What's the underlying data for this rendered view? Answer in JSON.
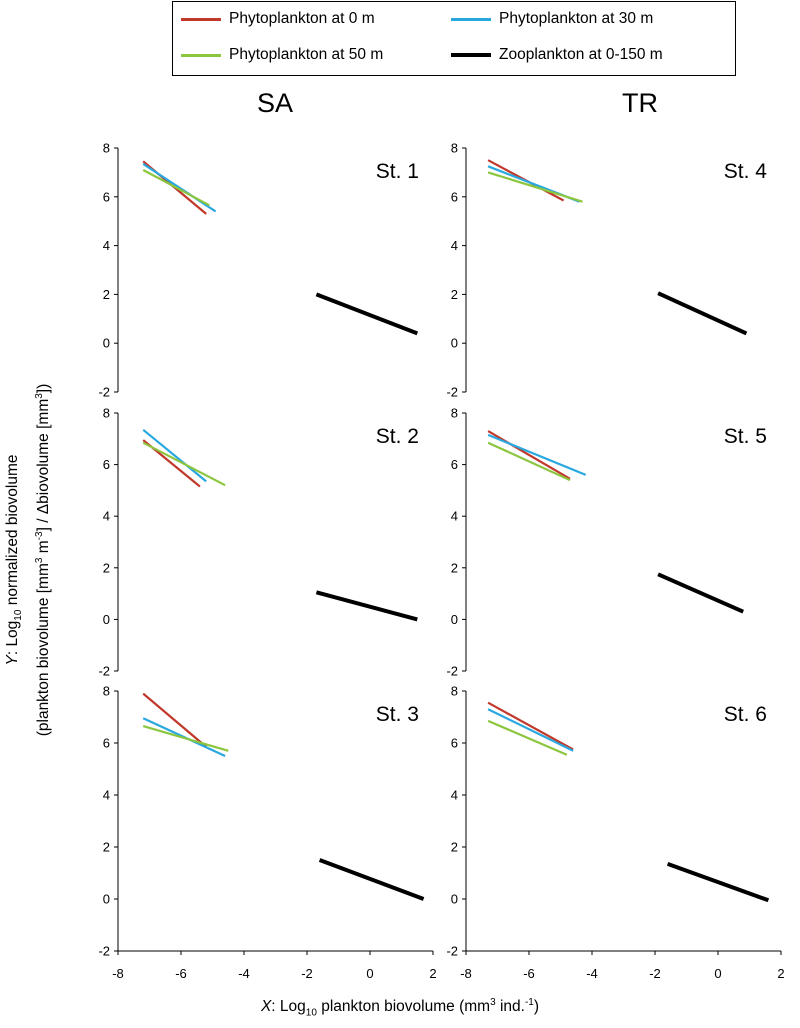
{
  "legend": {
    "items": [
      {
        "label": "Phytoplankton at 0 m",
        "color": "#c0392b"
      },
      {
        "label": "Phytoplankton at 30 m",
        "color": "#29a8e0"
      },
      {
        "label": "Phytoplankton at 50 m",
        "color": "#8cc63f"
      },
      {
        "label": "Zooplankton at 0-150 m",
        "color": "#000000"
      }
    ]
  },
  "columns": [
    "SA",
    "TR"
  ],
  "ylabel": {
    "line1_prefix": "Y",
    "line1_text": ": Log",
    "line1_sub": "10",
    "line1_tail": " normalized biovolume",
    "line2_a": "(plankton biovolume [mm",
    "line2_sup1": "3",
    "line2_b": " m",
    "line2_sup2": "-3",
    "line2_c": "] / Δbiovolume [mm",
    "line2_sup3": "3",
    "line2_d": "])"
  },
  "xlabel": {
    "prefix": "X",
    "text": ": Log",
    "sub": "10",
    "tail": " plankton biovolume (mm",
    "sup1": "3",
    "tail2": " ind.",
    "sup2": "-1",
    "tail3": ")"
  },
  "chart_data": [
    {
      "type": "line",
      "panel": "St. 1",
      "column": "SA",
      "xlim": [
        -8,
        2
      ],
      "ylim": [
        -2,
        8
      ],
      "xticks": [
        -8,
        -6,
        -4,
        -2,
        0,
        2
      ],
      "yticks": [
        -2,
        0,
        2,
        4,
        6,
        8
      ],
      "series": [
        {
          "name": "Phytoplankton at 0 m",
          "x": [
            -7.2,
            -5.2
          ],
          "y": [
            7.45,
            5.3
          ]
        },
        {
          "name": "Phytoplankton at 30 m",
          "x": [
            -7.2,
            -4.9
          ],
          "y": [
            7.35,
            5.4
          ]
        },
        {
          "name": "Phytoplankton at 50 m",
          "x": [
            -7.2,
            -5.1
          ],
          "y": [
            7.1,
            5.65
          ]
        },
        {
          "name": "Zooplankton at 0-150 m",
          "x": [
            -1.7,
            1.5
          ],
          "y": [
            2.0,
            0.4
          ]
        }
      ]
    },
    {
      "type": "line",
      "panel": "St. 4",
      "column": "TR",
      "xlim": [
        -8,
        2
      ],
      "ylim": [
        -2,
        8
      ],
      "xticks": [
        -8,
        -6,
        -4,
        -2,
        0,
        2
      ],
      "yticks": [
        -2,
        0,
        2,
        4,
        6,
        8
      ],
      "series": [
        {
          "name": "Phytoplankton at 0 m",
          "x": [
            -7.3,
            -4.9
          ],
          "y": [
            7.5,
            5.85
          ]
        },
        {
          "name": "Phytoplankton at 30 m",
          "x": [
            -7.3,
            -4.4
          ],
          "y": [
            7.25,
            5.8
          ]
        },
        {
          "name": "Phytoplankton at 50 m",
          "x": [
            -7.3,
            -4.3
          ],
          "y": [
            7.0,
            5.8
          ]
        },
        {
          "name": "Zooplankton at 0-150 m",
          "x": [
            -1.9,
            0.9
          ],
          "y": [
            2.05,
            0.4
          ]
        }
      ]
    },
    {
      "type": "line",
      "panel": "St. 2",
      "column": "SA",
      "xlim": [
        -8,
        2
      ],
      "ylim": [
        -2,
        8
      ],
      "xticks": [
        -8,
        -6,
        -4,
        -2,
        0,
        2
      ],
      "yticks": [
        -2,
        0,
        2,
        4,
        6,
        8
      ],
      "series": [
        {
          "name": "Phytoplankton at 0 m",
          "x": [
            -7.2,
            -5.4
          ],
          "y": [
            6.95,
            5.15
          ]
        },
        {
          "name": "Phytoplankton at 30 m",
          "x": [
            -7.2,
            -5.2
          ],
          "y": [
            7.35,
            5.35
          ]
        },
        {
          "name": "Phytoplankton at 50 m",
          "x": [
            -7.2,
            -4.6
          ],
          "y": [
            6.85,
            5.2
          ]
        },
        {
          "name": "Zooplankton at 0-150 m",
          "x": [
            -1.7,
            1.5
          ],
          "y": [
            1.05,
            0.0
          ]
        }
      ]
    },
    {
      "type": "line",
      "panel": "St. 5",
      "column": "TR",
      "xlim": [
        -8,
        2
      ],
      "ylim": [
        -2,
        8
      ],
      "xticks": [
        -8,
        -6,
        -4,
        -2,
        0,
        2
      ],
      "yticks": [
        -2,
        0,
        2,
        4,
        6,
        8
      ],
      "series": [
        {
          "name": "Phytoplankton at 0 m",
          "x": [
            -7.3,
            -4.7
          ],
          "y": [
            7.3,
            5.45
          ]
        },
        {
          "name": "Phytoplankton at 30 m",
          "x": [
            -7.3,
            -4.2
          ],
          "y": [
            7.15,
            5.6
          ]
        },
        {
          "name": "Phytoplankton at 50 m",
          "x": [
            -7.3,
            -4.7
          ],
          "y": [
            6.85,
            5.4
          ]
        },
        {
          "name": "Zooplankton at 0-150 m",
          "x": [
            -1.9,
            0.8
          ],
          "y": [
            1.75,
            0.3
          ]
        }
      ]
    },
    {
      "type": "line",
      "panel": "St. 3",
      "column": "SA",
      "xlim": [
        -8,
        2
      ],
      "ylim": [
        -2,
        8
      ],
      "xticks": [
        -8,
        -6,
        -4,
        -2,
        0,
        2
      ],
      "yticks": [
        -2,
        0,
        2,
        4,
        6,
        8
      ],
      "series": [
        {
          "name": "Phytoplankton at 0 m",
          "x": [
            -7.2,
            -5.2
          ],
          "y": [
            7.9,
            5.85
          ]
        },
        {
          "name": "Phytoplankton at 30 m",
          "x": [
            -7.2,
            -4.6
          ],
          "y": [
            6.95,
            5.5
          ]
        },
        {
          "name": "Phytoplankton at 50 m",
          "x": [
            -7.2,
            -4.5
          ],
          "y": [
            6.65,
            5.7
          ]
        },
        {
          "name": "Zooplankton at 0-150 m",
          "x": [
            -1.6,
            1.7
          ],
          "y": [
            1.5,
            0.0
          ]
        }
      ]
    },
    {
      "type": "line",
      "panel": "St. 6",
      "column": "TR",
      "xlim": [
        -8,
        2
      ],
      "ylim": [
        -2,
        8
      ],
      "xticks": [
        -8,
        -6,
        -4,
        -2,
        0,
        2
      ],
      "yticks": [
        -2,
        0,
        2,
        4,
        6,
        8
      ],
      "series": [
        {
          "name": "Phytoplankton at 0 m",
          "x": [
            -7.3,
            -4.6
          ],
          "y": [
            7.55,
            5.75
          ]
        },
        {
          "name": "Phytoplankton at 30 m",
          "x": [
            -7.3,
            -4.6
          ],
          "y": [
            7.3,
            5.7
          ]
        },
        {
          "name": "Phytoplankton at 50 m",
          "x": [
            -7.3,
            -4.8
          ],
          "y": [
            6.85,
            5.55
          ]
        },
        {
          "name": "Zooplankton at 0-150 m",
          "x": [
            -1.6,
            1.6
          ],
          "y": [
            1.35,
            -0.05
          ]
        }
      ]
    }
  ]
}
